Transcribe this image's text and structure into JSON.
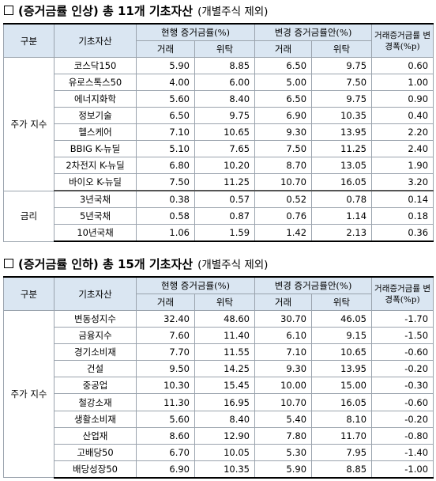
{
  "section1": {
    "title": "(증거금률 인상) 총 11개 기초자산",
    "subtitle": "(개별주식 제외)",
    "headers": {
      "category": "구분",
      "asset": "기초자산",
      "current": "현행 증거금률(%)",
      "changed": "변경 증거금률안(%)",
      "change_width": "거래증거금률 변경폭(%p)",
      "trade": "거래",
      "consign": "위탁"
    },
    "groups": [
      {
        "label": "주가 지수",
        "rows": [
          {
            "name": "코스닥150",
            "cur_trade": "5.90",
            "cur_consign": "8.85",
            "new_trade": "6.50",
            "new_consign": "9.75",
            "delta": "0.60"
          },
          {
            "name": "유로스톡스50",
            "cur_trade": "4.00",
            "cur_consign": "6.00",
            "new_trade": "5.00",
            "new_consign": "7.50",
            "delta": "1.00"
          },
          {
            "name": "에너지화학",
            "cur_trade": "5.60",
            "cur_consign": "8.40",
            "new_trade": "6.50",
            "new_consign": "9.75",
            "delta": "0.90"
          },
          {
            "name": "정보기술",
            "cur_trade": "6.50",
            "cur_consign": "9.75",
            "new_trade": "6.90",
            "new_consign": "10.35",
            "delta": "0.40"
          },
          {
            "name": "헬스케어",
            "cur_trade": "7.10",
            "cur_consign": "10.65",
            "new_trade": "9.30",
            "new_consign": "13.95",
            "delta": "2.20"
          },
          {
            "name": "BBIG K-뉴딜",
            "cur_trade": "5.10",
            "cur_consign": "7.65",
            "new_trade": "7.50",
            "new_consign": "11.25",
            "delta": "2.40"
          },
          {
            "name": "2차전지 K-뉴딜",
            "cur_trade": "6.80",
            "cur_consign": "10.20",
            "new_trade": "8.70",
            "new_consign": "13.05",
            "delta": "1.90"
          },
          {
            "name": "바이오 K-뉴딜",
            "cur_trade": "7.50",
            "cur_consign": "11.25",
            "new_trade": "10.70",
            "new_consign": "16.05",
            "delta": "3.20"
          }
        ]
      },
      {
        "label": "금리",
        "rows": [
          {
            "name": "3년국채",
            "cur_trade": "0.38",
            "cur_consign": "0.57",
            "new_trade": "0.52",
            "new_consign": "0.78",
            "delta": "0.14"
          },
          {
            "name": "5년국채",
            "cur_trade": "0.58",
            "cur_consign": "0.87",
            "new_trade": "0.76",
            "new_consign": "1.14",
            "delta": "0.18"
          },
          {
            "name": "10년국채",
            "cur_trade": "1.06",
            "cur_consign": "1.59",
            "new_trade": "1.42",
            "new_consign": "2.13",
            "delta": "0.36"
          }
        ]
      }
    ]
  },
  "section2": {
    "title": "(증거금률 인하) 총 15개 기초자산",
    "subtitle": "(개별주식 제외)",
    "headers": {
      "category": "구분",
      "asset": "기초자산",
      "current": "현행 증거금률(%)",
      "changed": "변경 증거금률안(%)",
      "change_width": "거래증거금률 변경폭(%p)",
      "trade": "거래",
      "consign": "위탁"
    },
    "groups": [
      {
        "label": "주가 지수",
        "rows": [
          {
            "name": "변동성지수",
            "cur_trade": "32.40",
            "cur_consign": "48.60",
            "new_trade": "30.70",
            "new_consign": "46.05",
            "delta": "-1.70"
          },
          {
            "name": "금융지수",
            "cur_trade": "7.60",
            "cur_consign": "11.40",
            "new_trade": "6.10",
            "new_consign": "9.15",
            "delta": "-1.50"
          },
          {
            "name": "경기소비재",
            "cur_trade": "7.70",
            "cur_consign": "11.55",
            "new_trade": "7.10",
            "new_consign": "10.65",
            "delta": "-0.60"
          },
          {
            "name": "건설",
            "cur_trade": "9.50",
            "cur_consign": "14.25",
            "new_trade": "9.30",
            "new_consign": "13.95",
            "delta": "-0.20"
          },
          {
            "name": "중공업",
            "cur_trade": "10.30",
            "cur_consign": "15.45",
            "new_trade": "10.00",
            "new_consign": "15.00",
            "delta": "-0.30"
          },
          {
            "name": "철강소재",
            "cur_trade": "11.30",
            "cur_consign": "16.95",
            "new_trade": "10.70",
            "new_consign": "16.05",
            "delta": "-0.60"
          },
          {
            "name": "생활소비재",
            "cur_trade": "5.60",
            "cur_consign": "8.40",
            "new_trade": "5.40",
            "new_consign": "8.10",
            "delta": "-0.20"
          },
          {
            "name": "산업재",
            "cur_trade": "8.60",
            "cur_consign": "12.90",
            "new_trade": "7.80",
            "new_consign": "11.70",
            "delta": "-0.80"
          },
          {
            "name": "고배당50",
            "cur_trade": "6.70",
            "cur_consign": "10.05",
            "new_trade": "5.30",
            "new_consign": "7.95",
            "delta": "-1.40"
          },
          {
            "name": "배당성장50",
            "cur_trade": "6.90",
            "cur_consign": "10.35",
            "new_trade": "5.90",
            "new_consign": "8.85",
            "delta": "-1.00"
          }
        ]
      }
    ]
  }
}
